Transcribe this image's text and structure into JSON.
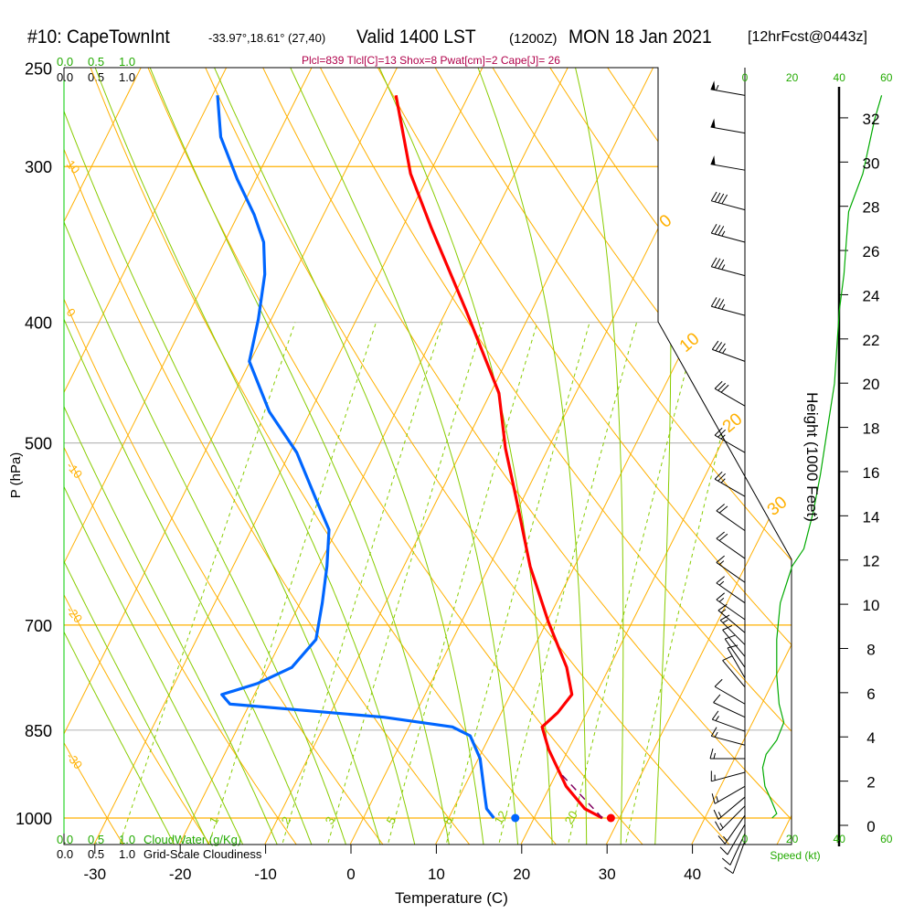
{
  "header": {
    "station": "#10: CapeTownInt",
    "coords": "-33.97°,18.61° (27,40)",
    "valid": "Valid 1400 LST",
    "utc": "(1200Z)",
    "date": "MON 18 Jan 2021",
    "forecast": "[12hrFcst@0443z]",
    "stats": "Plcl=839 Tlcl[C]=13 Shox=8 Pwat[cm]=2 Cape[J]= 26"
  },
  "cloud_scale": {
    "ticks": [
      "0.0",
      "0.5",
      "1.0"
    ],
    "cloudwater_label": "CloudWater (g/Kg)",
    "cloudiness_label": "Grid-Scale Cloudiness"
  },
  "colors": {
    "temperature": "#ff0000",
    "dewpoint": "#0066ff",
    "parcel": "#800060",
    "isotherm": "#ffb000",
    "moist_adiabat": "#88cc00",
    "mixing_ratio": "#88cc00",
    "speed": "#00aa00",
    "stats": "#b0004a"
  },
  "chart_data": {
    "type": "skew-t",
    "title": "#10: CapeTownInt Valid 1400 LST MON 18 Jan 2021",
    "xlabel": "Temperature (C)",
    "ylabel": "P (hPa)",
    "right_label": "Height (1000 Feet)",
    "speed_label": "Speed (kt)",
    "pressure_ticks": [
      "250",
      "300",
      "400",
      "500",
      "700",
      "850",
      "1000"
    ],
    "temperature_ticks": [
      "-30",
      "-20",
      "-10",
      "0",
      "10",
      "20",
      "30",
      "40"
    ],
    "height_ticks": [
      "0",
      "2",
      "4",
      "6",
      "8",
      "10",
      "12",
      "14",
      "16",
      "18",
      "20",
      "22",
      "24",
      "26",
      "28",
      "30",
      "32"
    ],
    "speed_ticks": [
      "0",
      "20",
      "40",
      "60"
    ],
    "dry_adiabat_labels": [
      "10",
      "0",
      "-10",
      "-20",
      "-30"
    ],
    "isotherm_labels": [
      "0",
      "10",
      "20",
      "30"
    ],
    "mixing_ratio_labels": [
      "1",
      "2",
      "3",
      "5",
      "8",
      "12",
      "20"
    ],
    "pressure_range": [
      250,
      1050
    ],
    "temperature": [
      [
        263,
        -38.5
      ],
      [
        304,
        -32.2
      ],
      [
        336,
        -26.6
      ],
      [
        392,
        -17.6
      ],
      [
        456,
        -9.0
      ],
      [
        505,
        -5.0
      ],
      [
        554,
        -0.8
      ],
      [
        628,
        4.8
      ],
      [
        696,
        10.2
      ],
      [
        757,
        15.0
      ],
      [
        796,
        17.2
      ],
      [
        823,
        16.6
      ],
      [
        845,
        15.6
      ],
      [
        881,
        17.7
      ],
      [
        943,
        21.9
      ],
      [
        983,
        25.4
      ],
      [
        1000,
        28.0
      ]
    ],
    "dewpoint": [
      [
        263,
        -59.4
      ],
      [
        284,
        -56.6
      ],
      [
        307,
        -52.2
      ],
      [
        328,
        -48.1
      ],
      [
        345,
        -45.4
      ],
      [
        366,
        -43.4
      ],
      [
        398,
        -41.5
      ],
      [
        430,
        -40.1
      ],
      [
        472,
        -34.8
      ],
      [
        509,
        -29.2
      ],
      [
        554,
        -24.3
      ],
      [
        587,
        -20.9
      ],
      [
        628,
        -19.0
      ],
      [
        672,
        -17.4
      ],
      [
        719,
        -16.0
      ],
      [
        757,
        -17.2
      ],
      [
        780,
        -20.3
      ],
      [
        796,
        -23.8
      ],
      [
        810,
        -22.3
      ],
      [
        830,
        -3.5
      ],
      [
        845,
        5.1
      ],
      [
        859,
        7.7
      ],
      [
        896,
        10.2
      ],
      [
        959,
        12.9
      ],
      [
        983,
        13.9
      ],
      [
        1000,
        15.3
      ]
    ],
    "surface_temperature": 29.0,
    "surface_dewpoint": 17.8,
    "parcel": [
      [
        1000,
        28.0
      ],
      [
        919,
        20.3
      ]
    ],
    "winds": [
      [
        263,
        280,
        55
      ],
      [
        282,
        280,
        50
      ],
      [
        302,
        280,
        50
      ],
      [
        325,
        285,
        40
      ],
      [
        345,
        285,
        35
      ],
      [
        367,
        285,
        35
      ],
      [
        395,
        285,
        35
      ],
      [
        430,
        290,
        35
      ],
      [
        467,
        300,
        30
      ],
      [
        509,
        300,
        25
      ],
      [
        552,
        300,
        25
      ],
      [
        588,
        305,
        20
      ],
      [
        619,
        305,
        20
      ],
      [
        647,
        305,
        15
      ],
      [
        672,
        305,
        15
      ],
      [
        693,
        305,
        15
      ],
      [
        710,
        310,
        15
      ],
      [
        726,
        315,
        15
      ],
      [
        742,
        320,
        10
      ],
      [
        757,
        325,
        10
      ],
      [
        772,
        330,
        10
      ],
      [
        785,
        320,
        10
      ],
      [
        810,
        300,
        10
      ],
      [
        830,
        295,
        10
      ],
      [
        852,
        290,
        15
      ],
      [
        874,
        285,
        15
      ],
      [
        896,
        270,
        15
      ],
      [
        919,
        255,
        15
      ],
      [
        943,
        240,
        15
      ],
      [
        962,
        230,
        15
      ],
      [
        978,
        225,
        15
      ],
      [
        995,
        215,
        15
      ],
      [
        1012,
        210,
        10
      ],
      [
        1029,
        205,
        10
      ],
      [
        1043,
        200,
        10
      ]
    ],
    "wind_speed_profile": [
      [
        263,
        58
      ],
      [
        275,
        55
      ],
      [
        304,
        50
      ],
      [
        326,
        44
      ],
      [
        345,
        43
      ],
      [
        366,
        42
      ],
      [
        392,
        40
      ],
      [
        419,
        39
      ],
      [
        448,
        38
      ],
      [
        487,
        35
      ],
      [
        530,
        32
      ],
      [
        568,
        29
      ],
      [
        608,
        25
      ],
      [
        628,
        20
      ],
      [
        672,
        15
      ],
      [
        719,
        13.5
      ],
      [
        768,
        13.5
      ],
      [
        810,
        14.5
      ],
      [
        838,
        16.5
      ],
      [
        866,
        13.5
      ],
      [
        889,
        9
      ],
      [
        911,
        7.5
      ],
      [
        943,
        8.5
      ],
      [
        971,
        11.5
      ],
      [
        992,
        13.5
      ],
      [
        1000,
        11.5
      ]
    ]
  }
}
